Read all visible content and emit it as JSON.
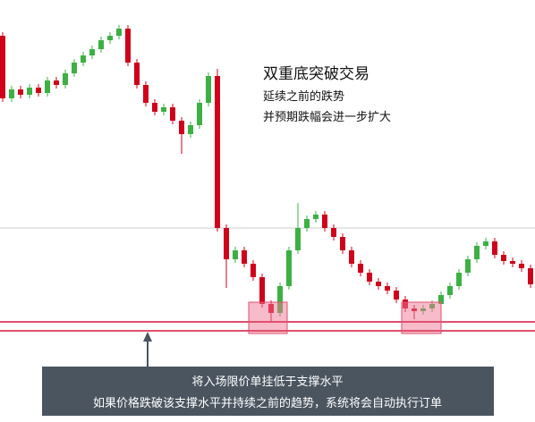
{
  "chart_data": {
    "type": "candlestick",
    "title": "双重底突破交易",
    "subtitle": [
      "延续之前的跌势",
      "并预期跌幅会进一步扩大"
    ],
    "annotation": [
      "将入场限价单挂低于支撑水平",
      "如果价格跌破该支撑水平并持续之前的趋势，系统将会自动执行订单"
    ],
    "up_color": "#3cb043",
    "down_color": "#d0021b",
    "ylim": [
      0,
      472
    ],
    "open": [
      432,
      362,
      372,
      366,
      374,
      368,
      382,
      377,
      390,
      402,
      410,
      417,
      427,
      432,
      440,
      402,
      377,
      357,
      347,
      352,
      337,
      322,
      332,
      357,
      387,
      217,
      182,
      192,
      177,
      162,
      132,
      122,
      152,
      192,
      217,
      227,
      232,
      217,
      207,
      192,
      177,
      167,
      157,
      152,
      147,
      137,
      127,
      124,
      127,
      132,
      142,
      152,
      167,
      182,
      197,
      202,
      187,
      180,
      177,
      172
    ],
    "high": [
      436,
      376,
      376,
      378,
      378,
      386,
      386,
      394,
      406,
      414,
      421,
      431,
      436,
      444,
      444,
      406,
      381,
      361,
      356,
      356,
      341,
      336,
      361,
      391,
      395,
      221,
      196,
      196,
      181,
      166,
      136,
      156,
      196,
      245,
      231,
      236,
      236,
      221,
      211,
      196,
      181,
      171,
      161,
      156,
      151,
      141,
      131,
      131,
      136,
      146,
      156,
      171,
      186,
      201,
      206,
      206,
      191,
      184,
      181,
      176
    ],
    "low": [
      358,
      358,
      362,
      362,
      364,
      364,
      373,
      373,
      386,
      398,
      406,
      413,
      423,
      428,
      398,
      373,
      353,
      343,
      343,
      333,
      300,
      318,
      328,
      353,
      213,
      150,
      178,
      173,
      158,
      128,
      112,
      118,
      148,
      188,
      213,
      223,
      213,
      203,
      188,
      173,
      163,
      153,
      148,
      143,
      133,
      123,
      115,
      120,
      123,
      128,
      138,
      148,
      163,
      178,
      193,
      183,
      176,
      173,
      168,
      150
    ],
    "close": [
      362,
      372,
      366,
      374,
      368,
      382,
      377,
      390,
      402,
      410,
      417,
      427,
      432,
      440,
      402,
      377,
      357,
      347,
      352,
      337,
      322,
      332,
      357,
      387,
      217,
      182,
      192,
      177,
      162,
      132,
      122,
      152,
      192,
      217,
      227,
      232,
      217,
      207,
      192,
      177,
      167,
      157,
      152,
      147,
      137,
      127,
      124,
      127,
      132,
      142,
      152,
      167,
      182,
      197,
      202,
      187,
      180,
      177,
      172,
      154
    ]
  }
}
